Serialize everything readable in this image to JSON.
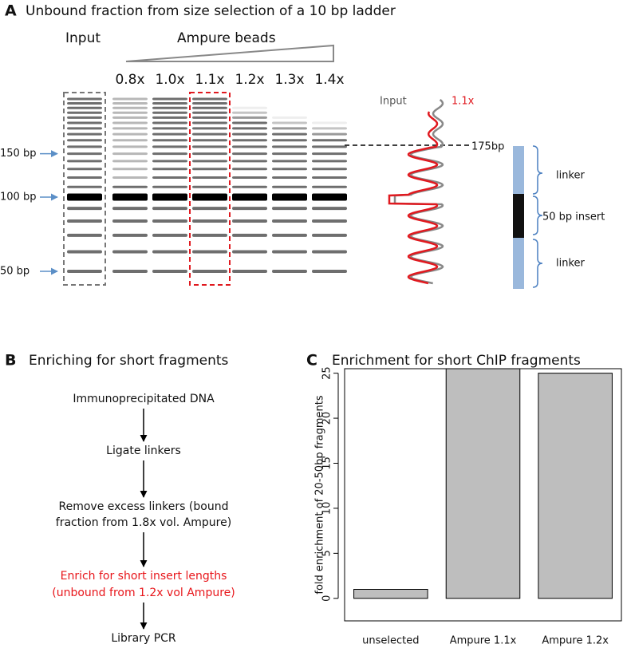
{
  "panel_a": {
    "letter": "A",
    "title": "Unbound fraction from size selection of a 10 bp ladder",
    "input_label": "Input",
    "beads_label": "Ampure beads",
    "lanes": [
      "0.8x",
      "1.0x",
      "1.1x",
      "1.2x",
      "1.3x",
      "1.4x"
    ],
    "size_markers": [
      "150 bp",
      "100 bp",
      "50 bp"
    ],
    "trace_labels": [
      "Input",
      "1.1x"
    ],
    "cutoff_label": "175bp",
    "segments": [
      "linker",
      "50 bp insert",
      "linker"
    ]
  },
  "panel_b": {
    "letter": "B",
    "title": "Enriching for short fragments",
    "steps": [
      [
        "Immunoprecipitated DNA"
      ],
      [
        "Ligate linkers"
      ],
      [
        "Remove excess linkers (bound",
        "fraction from 1.8x vol. Ampure)"
      ],
      [
        "Enrich for short insert lengths",
        "(unbound from 1.2x vol Ampure)"
      ],
      [
        "Library PCR"
      ]
    ],
    "highlight_color": "#e8161b"
  },
  "chart_data": {
    "type": "bar",
    "panel_label": "C",
    "title": "Enrichment for short ChIP fragments",
    "y_label": "fold enrichment of 20-50bp fragments",
    "categories": [
      "unselected",
      "Ampure 1.1x",
      "Ampure 1.2x"
    ],
    "values": [
      1,
      25.5,
      25
    ],
    "color": "#bebebe",
    "ylim": [
      -2.5,
      25.5
    ],
    "yticks": [
      0,
      5,
      10,
      15,
      20,
      25
    ]
  }
}
